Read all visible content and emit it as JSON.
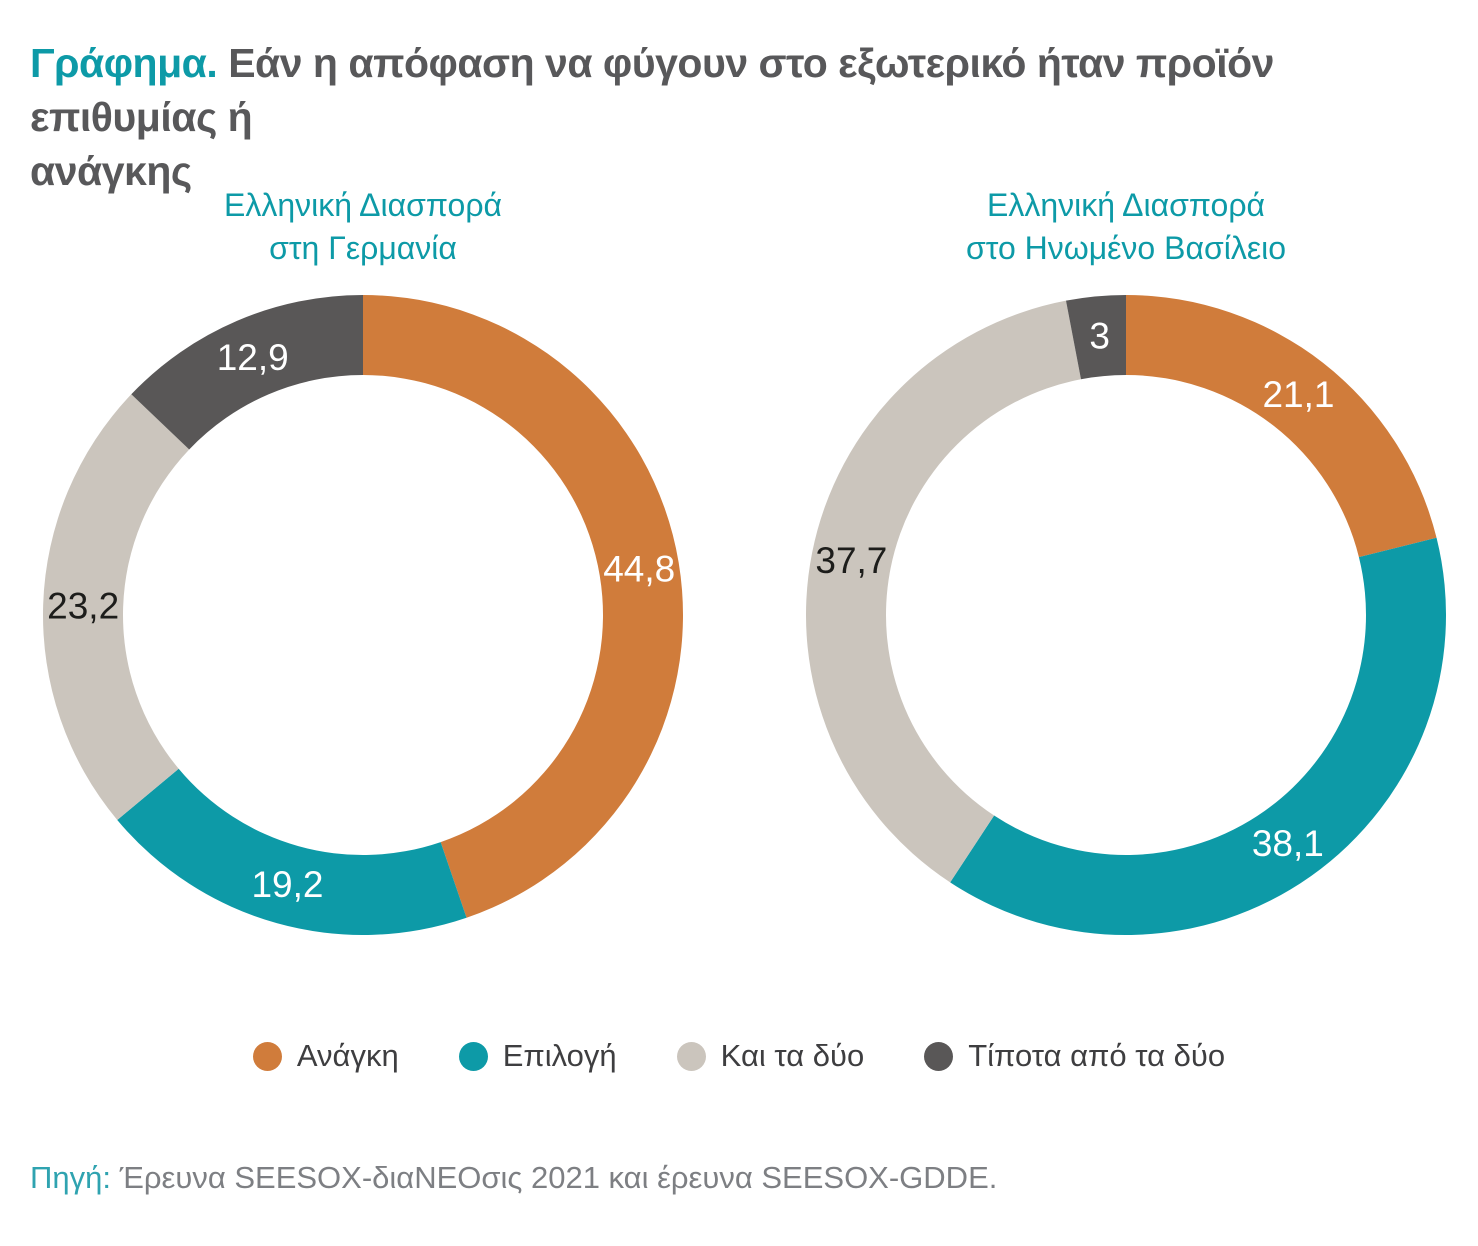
{
  "figure": {
    "title_prefix": "Γράφημα.",
    "title_line1": "Εάν η απόφαση να φύγουν στο εξωτερικό ήταν προϊόν επιθυμίας ή",
    "title_line2": "ανάγκης",
    "source_prefix": "Πηγή:",
    "source_text": " Έρευνα SEESOX-διαΝΕΟσις 2021 και έρευνα SEESOX-GDDE."
  },
  "colors": {
    "orange": "#D07C3B",
    "teal": "#0D9AA7",
    "light_gray": "#CBC5BD",
    "dark_gray": "#595757",
    "title_text": "#58585A",
    "subtitle_teal": "#0D9AA7",
    "legend_text": "#3E3E40",
    "source_text": "#7D7F83",
    "label_on_dark": "#FFFFFF",
    "label_on_light": "#1D1D1B"
  },
  "legend": {
    "items": [
      {
        "label": "Ανάγκη",
        "color": "#D07C3B"
      },
      {
        "label": "Επιλογή",
        "color": "#0D9AA7"
      },
      {
        "label": "Και τα δύο",
        "color": "#CBC5BD"
      },
      {
        "label": "Τίποτα από τα δύο",
        "color": "#595757"
      }
    ]
  },
  "chart_data": [
    {
      "type": "pie",
      "subtype": "donut",
      "title": "Ελληνική Διασπορά στη Γερμανία",
      "title_lines": [
        "Ελληνική Διασπορά",
        "στη Γερμανία"
      ],
      "categories": [
        "Ανάγκη",
        "Επιλογή",
        "Και τα δύο",
        "Τίποτα από τα δύο"
      ],
      "values": [
        44.8,
        19.2,
        23.2,
        12.9
      ],
      "value_labels": [
        "44,8",
        "19,2",
        "23,2",
        "12,9"
      ],
      "segment_colors": [
        "#D07C3B",
        "#0D9AA7",
        "#CBC5BD",
        "#595757"
      ],
      "label_text_colors": [
        "#FFFFFF",
        "#FFFFFF",
        "#1D1D1B",
        "#FFFFFF"
      ],
      "start_angle_deg": 0,
      "direction": "clockwise",
      "legend_position": "bottom-shared"
    },
    {
      "type": "pie",
      "subtype": "donut",
      "title": "Ελληνική Διασπορά στο Ηνωμένο Βασίλειο",
      "title_lines": [
        "Ελληνική Διασπορά",
        "στο Ηνωμένο Βασίλειο"
      ],
      "categories": [
        "Ανάγκη",
        "Επιλογή",
        "Και τα δύο",
        "Τίποτα από τα δύο"
      ],
      "values": [
        21.1,
        38.1,
        37.7,
        3
      ],
      "value_labels": [
        "21,1",
        "38,1",
        "37,7",
        "3"
      ],
      "segment_colors": [
        "#D07C3B",
        "#0D9AA7",
        "#CBC5BD",
        "#595757"
      ],
      "label_text_colors": [
        "#FFFFFF",
        "#FFFFFF",
        "#1D1D1B",
        "#FFFFFF"
      ],
      "start_angle_deg": 0,
      "direction": "clockwise",
      "legend_position": "bottom-shared"
    }
  ]
}
